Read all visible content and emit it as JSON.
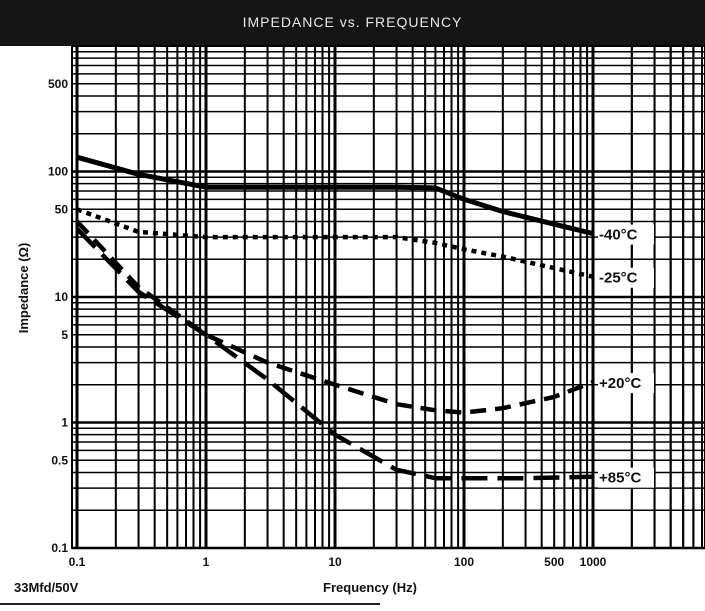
{
  "chart_data": {
    "type": "line",
    "title": "IMPEDANCE vs. FREQUENCY",
    "xlabel": "Frequency (Hz)",
    "ylabel": "Impedance  (Ω)",
    "x_scale": "log",
    "y_scale": "log",
    "xlim": [
      0.1,
      1000
    ],
    "ylim": [
      0.1,
      1000
    ],
    "x_ticks": [
      0.1,
      1,
      10,
      100,
      500,
      1000
    ],
    "x_tick_labels": [
      "0.1",
      "1",
      "10",
      "100",
      "500",
      "1000"
    ],
    "y_ticks": [
      500,
      100,
      50,
      10,
      5,
      1,
      0.5,
      0.1
    ],
    "y_tick_labels": [
      "500",
      "100",
      "50",
      "10",
      "5",
      "1",
      "0.5",
      "0.1"
    ],
    "grid": true,
    "series": [
      {
        "name": "-40°C",
        "style": "solid",
        "x": [
          0.1,
          0.3,
          1,
          3,
          10,
          30,
          60,
          100,
          200,
          500,
          1000
        ],
        "y": [
          130,
          95,
          75,
          75,
          75,
          75,
          74,
          60,
          48,
          38,
          32
        ]
      },
      {
        "name": "-25°C",
        "style": "dotted",
        "x": [
          0.1,
          0.3,
          1,
          3,
          10,
          30,
          60,
          100,
          200,
          500,
          1000
        ],
        "y": [
          50,
          33,
          30,
          30,
          30,
          30,
          27,
          24,
          21,
          17,
          14.5
        ]
      },
      {
        "name": "+20°C",
        "style": "dashed",
        "x": [
          0.1,
          0.3,
          1,
          3,
          10,
          30,
          60,
          100,
          200,
          500,
          1000
        ],
        "y": [
          40,
          12,
          5,
          3,
          2,
          1.4,
          1.25,
          1.2,
          1.3,
          1.6,
          2.1
        ]
      },
      {
        "name": "+85°C",
        "style": "long-dash",
        "x": [
          0.1,
          0.3,
          1,
          3,
          10,
          30,
          60,
          100,
          300,
          1000
        ],
        "y": [
          35,
          11,
          5,
          2.2,
          0.8,
          0.42,
          0.36,
          0.36,
          0.36,
          0.37
        ]
      }
    ],
    "series_labels": [
      "-40°C",
      "-25°C",
      "+20°C",
      "+85°C"
    ]
  },
  "footer": {
    "part_label": "33Mfd/50V"
  },
  "colors": {
    "title_bg": "#151515",
    "title_text": "#e8e8e8",
    "grid": "#000000",
    "line": "#000000",
    "background": "#ffffff"
  }
}
